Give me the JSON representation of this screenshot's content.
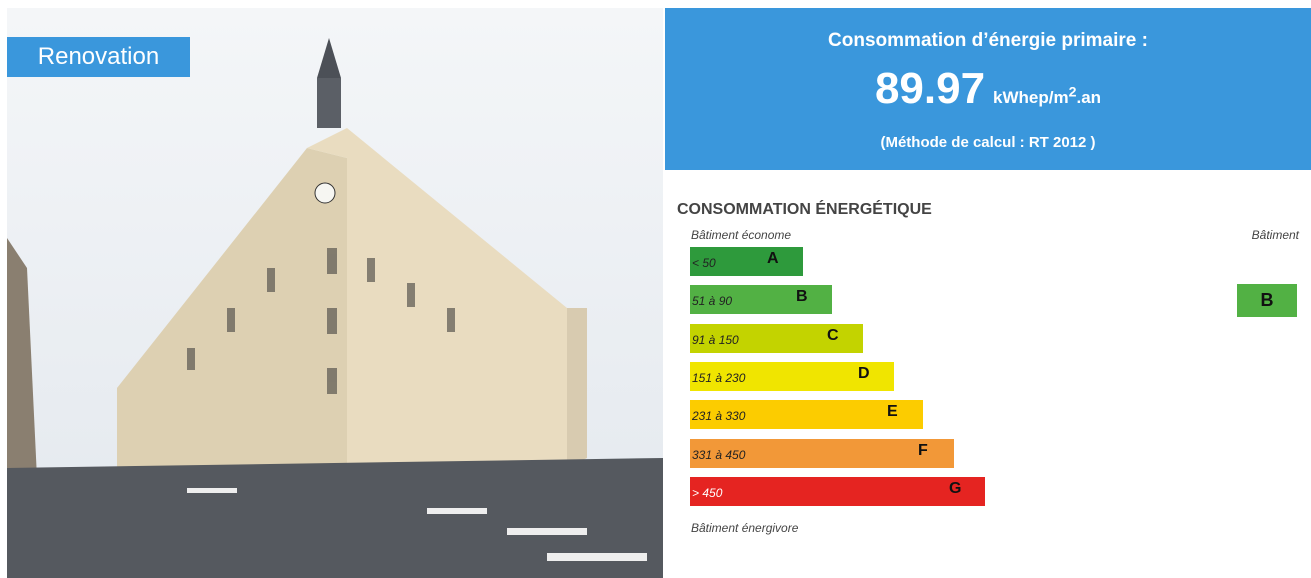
{
  "badge": "Renovation",
  "header": {
    "title": "Consommation d’énergie primaire :",
    "value": "89.97",
    "unit_base": "kWhep/m",
    "unit_exponent": "2",
    "unit_suffix": ".an",
    "method": "(Méthode de calcul : RT 2012 )"
  },
  "label": {
    "title": "CONSOMMATION ÉNERGÉTIQUE",
    "top_text": "Bâtiment économe",
    "bottom_text": "Bâtiment énergivore",
    "building_text": "Bâtiment",
    "classes": [
      {
        "range": "< 50",
        "letter": "A",
        "color": "#2e9a3c"
      },
      {
        "range": "51 à 90",
        "letter": "B",
        "color": "#52b144"
      },
      {
        "range": "91 à 150",
        "letter": "C",
        "color": "#c3d300"
      },
      {
        "range": "151 à 230",
        "letter": "D",
        "color": "#f0e500"
      },
      {
        "range": "231 à 330",
        "letter": "E",
        "color": "#fccc00"
      },
      {
        "range": "331 à 450",
        "letter": "F",
        "color": "#f29838"
      },
      {
        "range": "> 450",
        "letter": "G",
        "color": "#e52421"
      }
    ],
    "building_class": "B"
  }
}
